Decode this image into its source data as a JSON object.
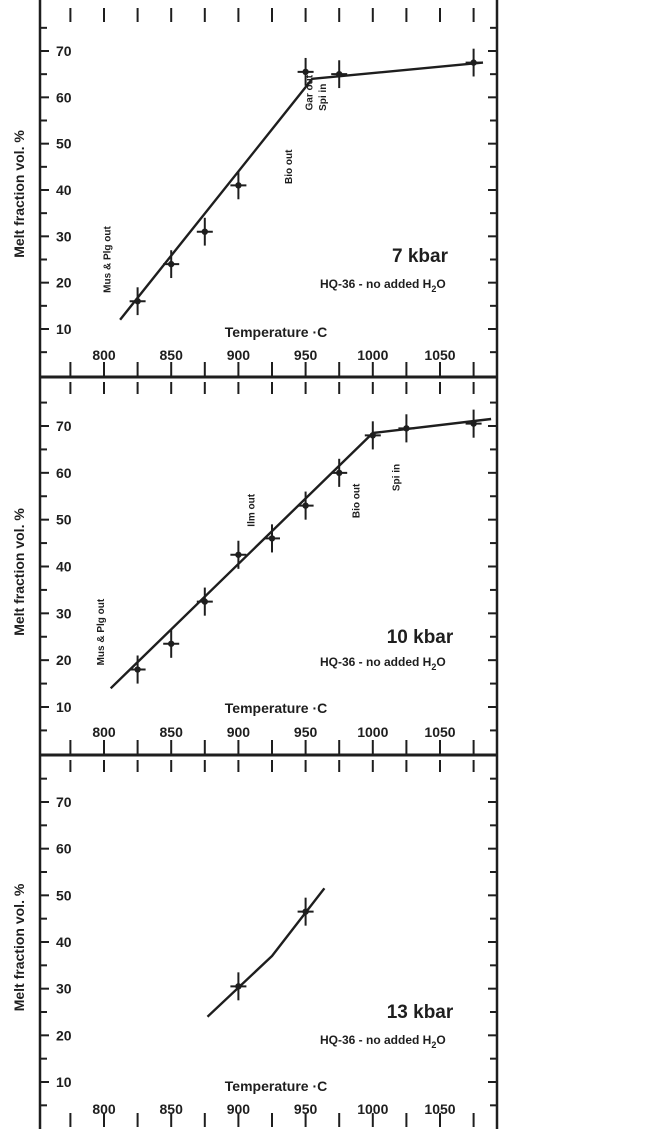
{
  "chart_data": [
    {
      "type": "line",
      "title": "",
      "pressure_label": "7 kbar",
      "sample_label_main": "HQ-36 - no added H",
      "sample_label_sub": "2",
      "sample_label_tail": "O",
      "xlabel": "Temperature ·C",
      "ylabel": "Melt fraction vol. %",
      "xlim": [
        775,
        1095
      ],
      "ylim": [
        4,
        76
      ],
      "x_ticks": [
        800,
        850,
        900,
        950,
        1000,
        1050
      ],
      "y_ticks": [
        10,
        20,
        30,
        40,
        50,
        60,
        70
      ],
      "points": [
        {
          "x": 825,
          "y": 16,
          "yerr": 3
        },
        {
          "x": 850,
          "y": 24,
          "yerr": 3
        },
        {
          "x": 875,
          "y": 31,
          "yerr": 3
        },
        {
          "x": 900,
          "y": 41,
          "yerr": 3
        },
        {
          "x": 950,
          "y": 65.5,
          "yerr": 3
        },
        {
          "x": 975,
          "y": 65,
          "yerr": 3
        },
        {
          "x": 1075,
          "y": 67.5,
          "yerr": 3
        }
      ],
      "fit_line": [
        {
          "x": 812,
          "y": 12
        },
        {
          "x": 955,
          "y": 64
        },
        {
          "x": 1082,
          "y": 67.5
        }
      ],
      "annotations": [
        {
          "text": "Mus & Plg out",
          "x": 805,
          "y": 25
        },
        {
          "text": "Bio out",
          "x": 940,
          "y": 45
        },
        {
          "text": "Gar out",
          "x": 955,
          "y": 61
        },
        {
          "text": "Spi in",
          "x": 965,
          "y": 60
        }
      ]
    },
    {
      "type": "line",
      "title": "",
      "pressure_label": "10 kbar",
      "sample_label_main": "HQ-36 - no added H",
      "sample_label_sub": "2",
      "sample_label_tail": "O",
      "xlabel": "Temperature ·C",
      "ylabel": "Melt fraction vol. %",
      "xlim": [
        775,
        1095
      ],
      "ylim": [
        4,
        76
      ],
      "x_ticks": [
        800,
        850,
        900,
        950,
        1000,
        1050
      ],
      "y_ticks": [
        10,
        20,
        30,
        40,
        50,
        60,
        70
      ],
      "points": [
        {
          "x": 825,
          "y": 18,
          "yerr": 3
        },
        {
          "x": 850,
          "y": 23.5,
          "yerr": 3
        },
        {
          "x": 875,
          "y": 32.5,
          "yerr": 3
        },
        {
          "x": 900,
          "y": 42.5,
          "yerr": 3
        },
        {
          "x": 925,
          "y": 46,
          "yerr": 3
        },
        {
          "x": 950,
          "y": 53,
          "yerr": 3
        },
        {
          "x": 975,
          "y": 60,
          "yerr": 3
        },
        {
          "x": 1000,
          "y": 68,
          "yerr": 3
        },
        {
          "x": 1025,
          "y": 69.5,
          "yerr": 3
        },
        {
          "x": 1075,
          "y": 70.5,
          "yerr": 3
        }
      ],
      "fit_line": [
        {
          "x": 805,
          "y": 14
        },
        {
          "x": 1000,
          "y": 68.5
        },
        {
          "x": 1088,
          "y": 71.5
        }
      ],
      "annotations": [
        {
          "text": "Mus & Plg out",
          "x": 800,
          "y": 26
        },
        {
          "text": "Ilm out",
          "x": 912,
          "y": 52
        },
        {
          "text": "Bio out",
          "x": 990,
          "y": 54
        },
        {
          "text": "Spi in",
          "x": 1020,
          "y": 59
        }
      ]
    },
    {
      "type": "line",
      "title": "",
      "pressure_label": "13 kbar",
      "sample_label_main": "HQ-36 - no added H",
      "sample_label_sub": "2",
      "sample_label_tail": "O",
      "xlabel": "Temperature ·C",
      "ylabel": "Melt fraction vol. %",
      "xlim": [
        775,
        1095
      ],
      "ylim": [
        4,
        76
      ],
      "x_ticks": [
        800,
        850,
        900,
        950,
        1000,
        1050
      ],
      "y_ticks": [
        10,
        20,
        30,
        40,
        50,
        60,
        70
      ],
      "points": [
        {
          "x": 900,
          "y": 30.5,
          "yerr": 3
        },
        {
          "x": 950,
          "y": 46.5,
          "yerr": 3
        }
      ],
      "fit_line": [
        {
          "x": 877,
          "y": 24
        },
        {
          "x": 925,
          "y": 37
        },
        {
          "x": 964,
          "y": 51.5
        }
      ],
      "annotations": []
    }
  ]
}
